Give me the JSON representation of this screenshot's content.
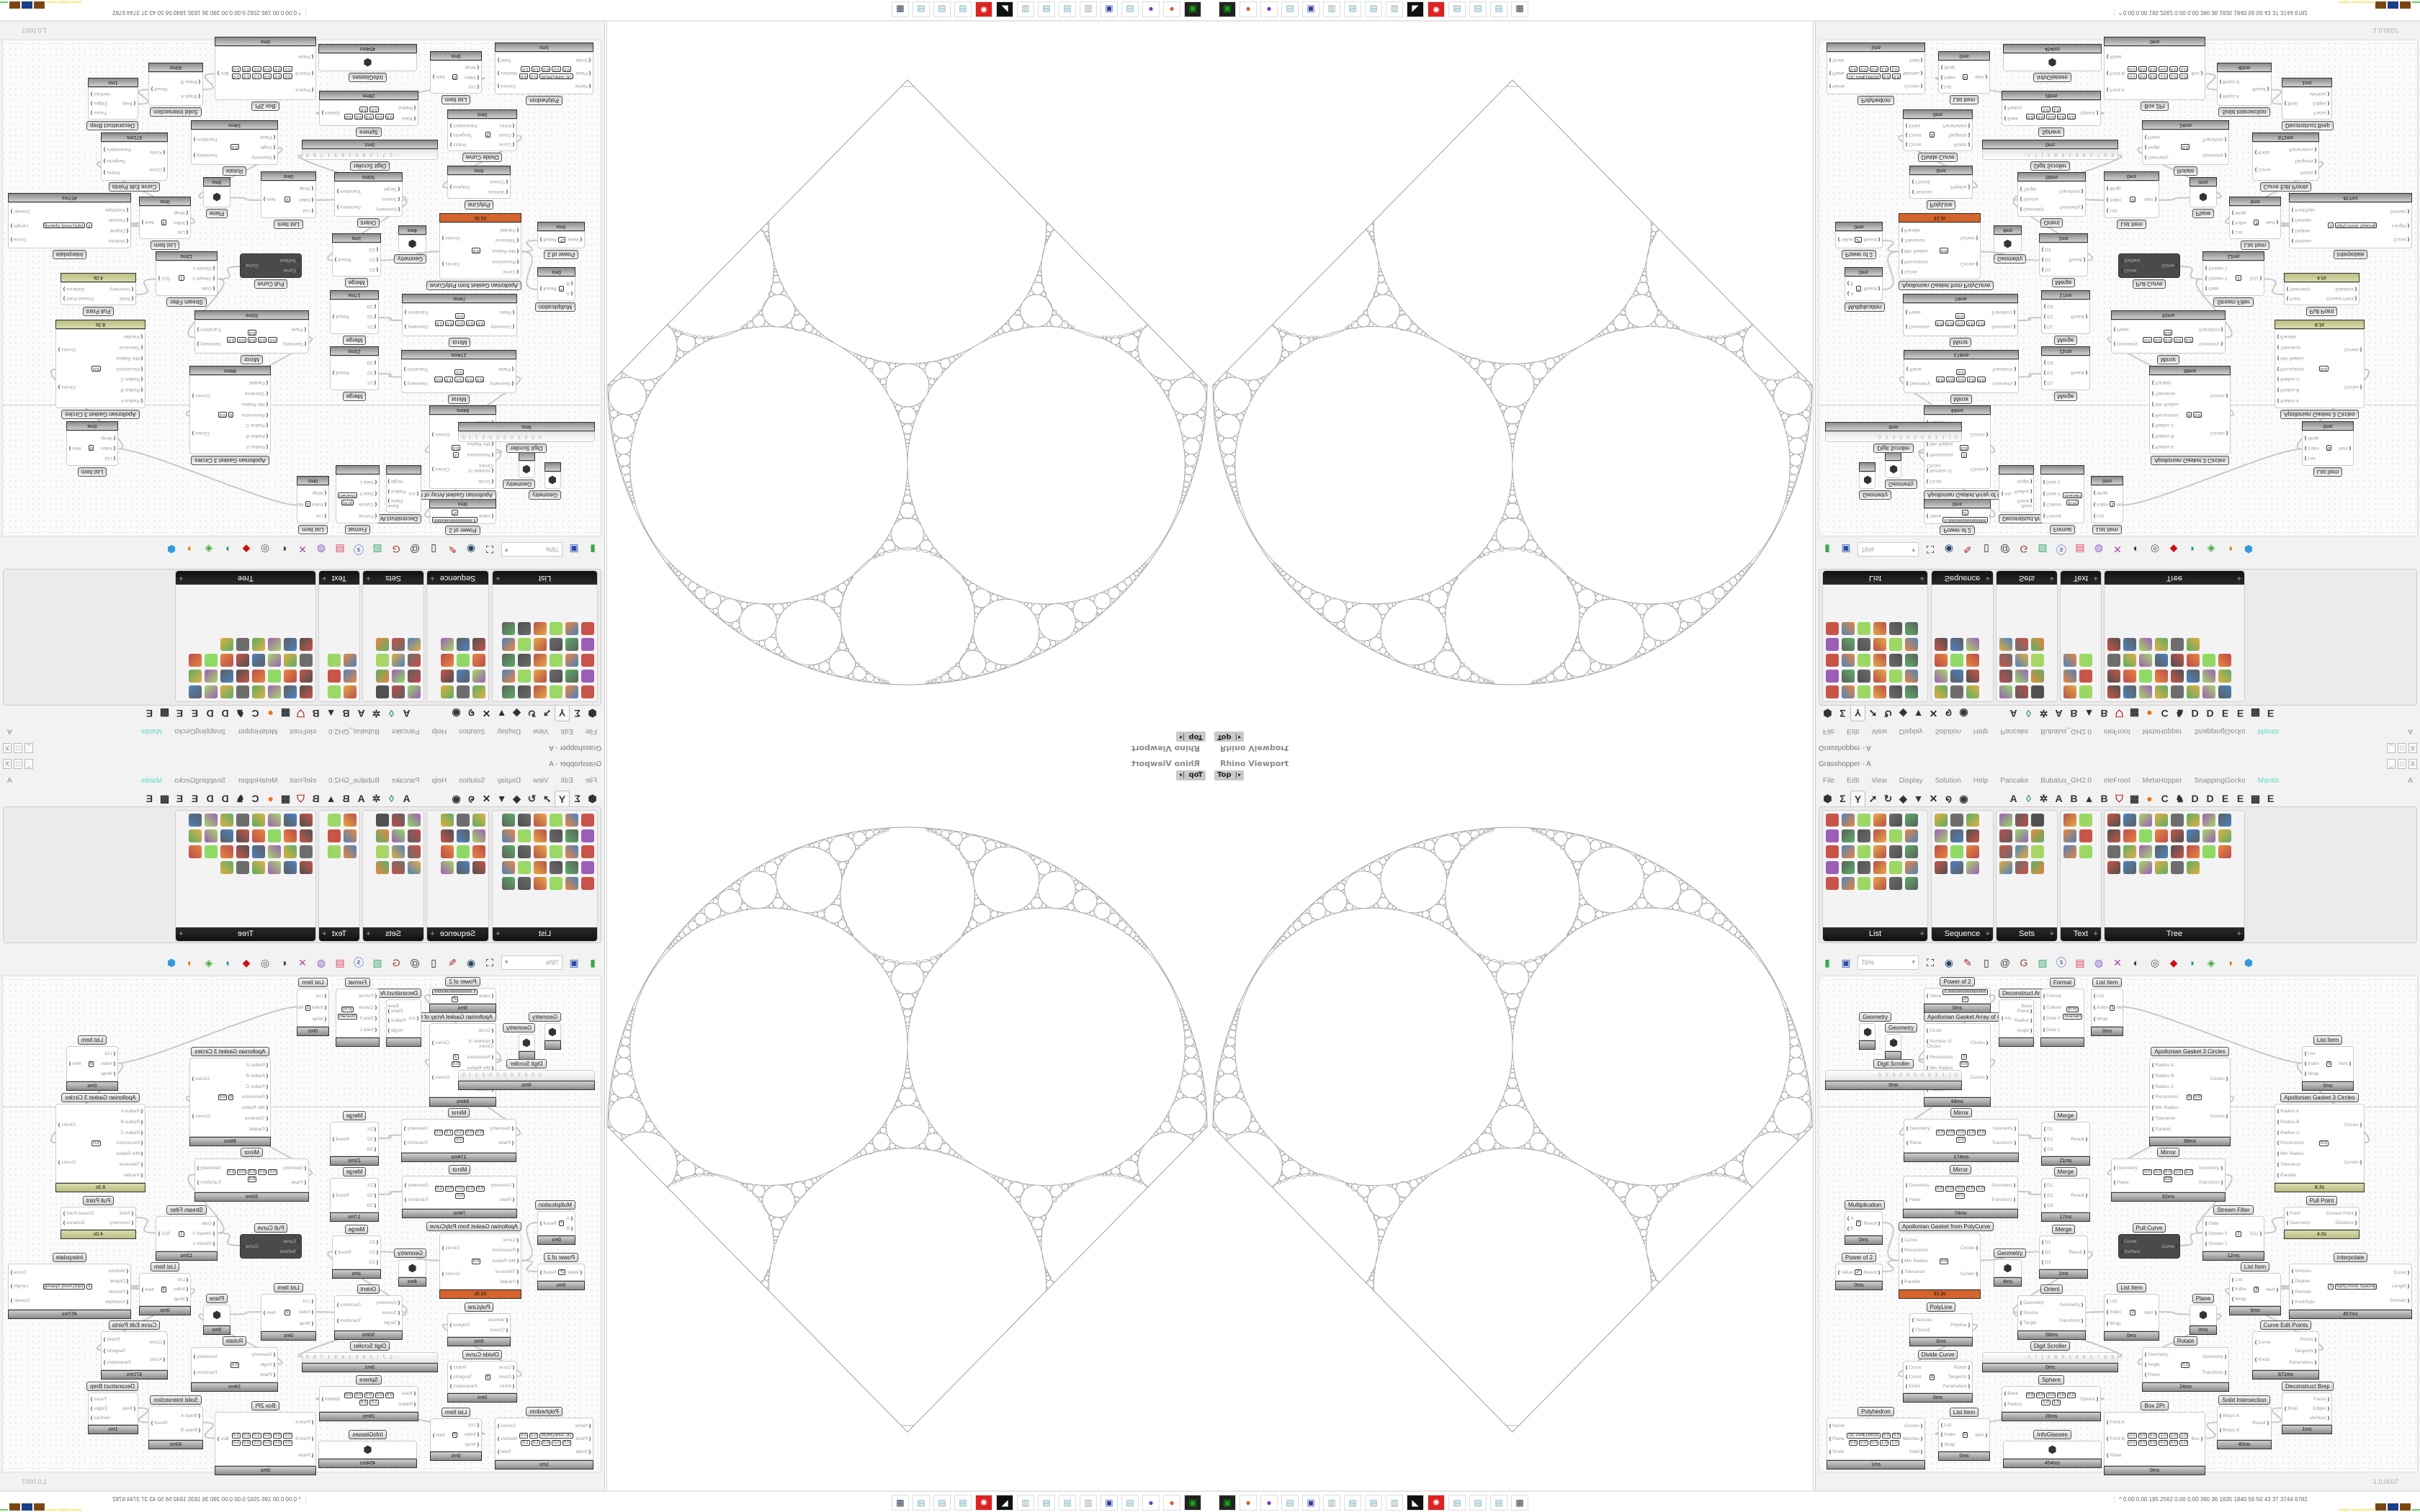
{
  "viewport": {
    "title": "Rhino Viewport",
    "view": "Top"
  },
  "grasshopper": {
    "title": "Grasshopper - A",
    "window_buttons": [
      "_",
      "□",
      "X"
    ],
    "menu": [
      "File",
      "Edit",
      "View",
      "Display",
      "Solution",
      "Help",
      "Pancake",
      "Bubalus_GH2.0",
      "eleFront",
      "MetaHopper",
      "SnappingGecko",
      "Mantis"
    ],
    "menu_right": "A",
    "tabs": [
      {
        "icon": "params-hex-icon",
        "glyph": "⬢"
      },
      {
        "icon": "maths-sigma-icon",
        "glyph": "Σ"
      },
      {
        "icon": "sets-tree-icon",
        "glyph": "Y"
      },
      {
        "icon": "vector-arrow-icon",
        "glyph": "➚"
      },
      {
        "icon": "curve-icon",
        "glyph": "↻"
      },
      {
        "icon": "surface-icon",
        "glyph": "◆"
      },
      {
        "icon": "mesh-icon",
        "glyph": "▼"
      },
      {
        "icon": "intersect-icon",
        "glyph": "✕"
      },
      {
        "icon": "transform-icon",
        "glyph": "໑"
      },
      {
        "icon": "display-eye-icon",
        "glyph": "◉"
      },
      {
        "icon": "plugin-a-icon",
        "glyph": "A"
      },
      {
        "icon": "plugin-crystal-icon",
        "glyph": "◊"
      },
      {
        "icon": "plugin-gear-icon",
        "glyph": "✲"
      },
      {
        "icon": "plugin-a2-icon",
        "glyph": "A"
      },
      {
        "icon": "plugin-b-icon",
        "glyph": "B"
      },
      {
        "icon": "plugin-mountain-icon",
        "glyph": "▲"
      },
      {
        "icon": "plugin-b2-icon",
        "glyph": "B"
      },
      {
        "icon": "plugin-shield-icon",
        "glyph": "⛉"
      },
      {
        "icon": "plugin-grid-icon",
        "glyph": "▦"
      },
      {
        "icon": "plugin-orange-dot-icon",
        "glyph": "●"
      },
      {
        "icon": "plugin-c-icon",
        "glyph": "C"
      },
      {
        "icon": "plugin-bird-icon",
        "glyph": "♞"
      },
      {
        "icon": "plugin-d-icon",
        "glyph": "D"
      },
      {
        "icon": "plugin-d2-icon",
        "glyph": "D"
      },
      {
        "icon": "plugin-e-icon",
        "glyph": "E"
      },
      {
        "icon": "plugin-e2-icon",
        "glyph": "E"
      },
      {
        "icon": "plugin-pattern-icon",
        "glyph": "▩"
      },
      {
        "icon": "plugin-e3-icon",
        "glyph": "E"
      }
    ],
    "active_tab": 2,
    "ribbon_panels": [
      "List",
      "Sequence",
      "Sets",
      "Text",
      "Tree"
    ],
    "canvas_toolbar_icons": [
      "open-file-icon",
      "save-icon",
      "zoom-extents-icon",
      "preview-eye-icon",
      "sketch-icon",
      "cluster-icon",
      "at-icon",
      "gha-icon",
      "image-icon",
      "search-icon",
      "package-icon",
      "bulb-icon",
      "dna-icon",
      "preview-shaded-icon",
      "wireframe-icon",
      "red-shape-icon",
      "teal-shape-icon",
      "green-shape-icon",
      "sphere-icon",
      "blue-drop-icon"
    ],
    "zoom": "76%",
    "version": "1.0.0007"
  },
  "canvas": {
    "nodes": [
      {
        "title": "Power of 2",
        "inputs": [
          "Value"
        ],
        "outputs": [
          "Result"
        ],
        "params": [
          "8.6666666666666666",
          "2ⁿ"
        ],
        "time": "0ms",
        "status": "normal"
      },
      {
        "title": "Apollonian Gasket Array of Circles",
        "inputs": [
          "Circle",
          "Number of Circles",
          "Recursions",
          "Min Radius",
          "Tolerance",
          "Parallel"
        ],
        "outputs": [
          "Circles",
          "Curves"
        ],
        "params": [
          "3",
          "0.0"
        ],
        "time": "84ms",
        "status": "normal"
      },
      {
        "title": "Deconstruct Arc",
        "inputs": [
          "Arc"
        ],
        "outputs": [
          "Base Plane",
          "Radius",
          "Angle"
        ],
        "params": [],
        "time": "",
        "status": "normal"
      },
      {
        "title": "Format",
        "inputs": [
          "Format",
          "Culture",
          "Data 0",
          "Data 1"
        ],
        "outputs": [
          "Text"
        ],
        "params": [
          "{0:R}",
          "Invariant"
        ],
        "time": "",
        "status": "normal"
      },
      {
        "title": "List Item",
        "inputs": [
          "List",
          "Index",
          "Wrap"
        ],
        "outputs": [
          "Item"
        ],
        "params": [
          "1"
        ],
        "time": "0ms",
        "status": "normal"
      },
      {
        "title": "Geometry",
        "inputs": [],
        "outputs": [],
        "params": [],
        "time": "",
        "status": "normal"
      },
      {
        "title": "Geometry",
        "inputs": [],
        "outputs": [],
        "params": [],
        "time": "",
        "status": "normal"
      },
      {
        "title": "Digit Scroller",
        "inputs": [],
        "outputs": [],
        "params": [
          "0 0 0 0 0 0 0 0 2 1 | 0"
        ],
        "time": "0ms",
        "status": "slider"
      },
      {
        "title": "Mirror",
        "inputs": [
          "Geometry",
          "Plane"
        ],
        "outputs": [
          "Geometry",
          "Transform"
        ],
        "params": [
          "0.0",
          "0.0",
          "0.0",
          "1.0",
          "0.0",
          "0.0"
        ],
        "time": "174ms",
        "status": "normal"
      },
      {
        "title": "Merge",
        "inputs": [
          "D1",
          "D2",
          "D3"
        ],
        "outputs": [
          "Result"
        ],
        "params": [],
        "time": "21ms",
        "status": "normal"
      },
      {
        "title": "Mirror",
        "inputs": [
          "Geometry",
          "Plane"
        ],
        "outputs": [
          "Geometry",
          "Transform"
        ],
        "params": [
          "0.0",
          "0.0",
          "0.0",
          "0.0",
          "1.0",
          "0.0"
        ],
        "time": "74ms",
        "status": "normal"
      },
      {
        "title": "Merge",
        "inputs": [
          "D1",
          "D2",
          "D3"
        ],
        "outputs": [
          "Result"
        ],
        "params": [],
        "time": "17ms",
        "status": "normal"
      },
      {
        "title": "Multiplication",
        "inputs": [
          "A",
          "B"
        ],
        "outputs": [
          "Result"
        ],
        "params": [
          "×"
        ],
        "time": "0ms",
        "status": "normal"
      },
      {
        "title": "Apollonian Gasket from PolyCurve",
        "inputs": [
          "Curve",
          "Recursions",
          "Min Radius",
          "Tolerance",
          "Parallel"
        ],
        "outputs": [
          "Circles",
          "Curves"
        ],
        "params": [
          "0.0"
        ],
        "time": "33.3s",
        "status": "orange"
      },
      {
        "title": "Merge",
        "inputs": [
          "D1",
          "D2",
          "D3"
        ],
        "outputs": [
          "Result"
        ],
        "params": [],
        "time": "1ms",
        "status": "normal"
      },
      {
        "title": "Geometry",
        "inputs": [],
        "outputs": [],
        "params": [],
        "time": "4ms",
        "status": "normal"
      },
      {
        "title": "Power of 2",
        "inputs": [
          "Value"
        ],
        "outputs": [
          "Result"
        ],
        "params": [
          "2ⁿ"
        ],
        "time": "0ms",
        "status": "normal"
      },
      {
        "title": "Apollonian Gasket 3 Circles",
        "inputs": [
          "Radius A",
          "Radius B",
          "Radius C",
          "Recursions",
          "Min Radius",
          "Tolerance",
          "Parallel"
        ],
        "outputs": [
          "Circles",
          "Curves"
        ],
        "params": [
          "0",
          "0.0"
        ],
        "time": "96ms",
        "status": "normal"
      },
      {
        "title": "List Item",
        "inputs": [
          "List",
          "Index",
          "Wrap"
        ],
        "outputs": [
          "Item"
        ],
        "params": [
          "0"
        ],
        "time": "0ms",
        "status": "normal"
      },
      {
        "title": "Apollonian Gasket 3 Circles",
        "inputs": [
          "Radius A",
          "Radius B",
          "Radius C",
          "Recursions",
          "Min Radius",
          "Tolerance",
          "Parallel"
        ],
        "outputs": [
          "Circles",
          "Curves"
        ],
        "params": [
          "0.0"
        ],
        "time": "8.3s",
        "status": "olive"
      },
      {
        "title": "Mirror",
        "inputs": [
          "Geometry",
          "Plane"
        ],
        "outputs": [
          "Geometry",
          "Transform"
        ],
        "params": [
          "0.0",
          "0.0",
          "0.0",
          "0.0",
          "1.0",
          "0.0"
        ],
        "time": "92ms",
        "status": "normal"
      },
      {
        "title": "Stream Filter",
        "inputs": [
          "Gate",
          "Stream 0",
          "Stream 1"
        ],
        "outputs": [
          "S(1)"
        ],
        "params": [
          "1"
        ],
        "time": "12ms",
        "status": "normal"
      },
      {
        "title": "Pull Point",
        "inputs": [
          "Point",
          "Geometry"
        ],
        "outputs": [
          "Closest Point",
          "Distance"
        ],
        "params": [],
        "time": "4.0s",
        "status": "olive"
      },
      {
        "title": "Pull Curve",
        "inputs": [
          "Curve",
          "Surface"
        ],
        "outputs": [
          "Curve"
        ],
        "params": [],
        "time": "",
        "status": "dark"
      },
      {
        "title": "Interpolate",
        "inputs": [
          "Vertices",
          "Degree",
          "Periodic",
          "KnotStyle"
        ],
        "outputs": [
          "Curve",
          "Length",
          "Domain"
        ],
        "params": [
          "3",
          "Sqrt(Chord) Spacing"
        ],
        "time": "457ms",
        "status": "normal"
      },
      {
        "title": "List Item",
        "inputs": [
          "List",
          "Index",
          "Wrap"
        ],
        "outputs": [
          "Item"
        ],
        "params": [
          "3"
        ],
        "time": "0ms",
        "status": "normal"
      },
      {
        "title": "List Item",
        "inputs": [
          "List",
          "Index",
          "Wrap"
        ],
        "outputs": [
          "Item"
        ],
        "params": [
          "0"
        ],
        "time": "0ms",
        "status": "normal"
      },
      {
        "title": "Plane",
        "inputs": [],
        "outputs": [],
        "params": [],
        "time": "0ms",
        "status": "normal"
      },
      {
        "title": "Curve Edit Points",
        "inputs": [
          "Curve",
          "Knots"
        ],
        "outputs": [
          "Points",
          "Tangents",
          "Parameters"
        ],
        "params": [],
        "time": "671ms",
        "status": "normal"
      },
      {
        "title": "Rotate",
        "inputs": [
          "Geometry",
          "Angle",
          "Plane"
        ],
        "outputs": [
          "Geometry",
          "Transform"
        ],
        "params": [
          "0.0"
        ],
        "time": "24ms",
        "status": "normal"
      },
      {
        "title": "Deconstruct Brep",
        "inputs": [
          "Brep"
        ],
        "outputs": [
          "Faces",
          "Edges",
          "Vertices"
        ],
        "params": [],
        "time": "1ms",
        "status": "normal"
      },
      {
        "title": "Solid Intersection",
        "inputs": [
          "Breps A",
          "Breps B"
        ],
        "outputs": [
          "Result"
        ],
        "params": [],
        "time": "40ms",
        "status": "normal"
      },
      {
        "title": "Box 2Pt",
        "inputs": [
          "Point A",
          "Point B",
          "Plane"
        ],
        "outputs": [
          "Box"
        ],
        "params": [
          "0.0",
          "0.0",
          "0.0",
          "1.0",
          "1.0",
          "1.0",
          "0.0",
          "0.0",
          "0.0",
          "0.0",
          "0.0",
          "1.0"
        ],
        "time": "0ms",
        "status": "normal"
      },
      {
        "title": "Orient",
        "inputs": [
          "Geometry",
          "Source",
          "Target"
        ],
        "outputs": [
          "Geometry",
          "Transform"
        ],
        "params": [],
        "time": "50ms",
        "status": "normal"
      },
      {
        "title": "PolyLine",
        "inputs": [
          "Vertices",
          "Closed"
        ],
        "outputs": [
          "Polyline"
        ],
        "params": [],
        "time": "0ms",
        "status": "normal"
      },
      {
        "title": "Digit Scroller",
        "inputs": [],
        "outputs": [],
        "params": [
          "-1 7 | 2 8 9 1 8 9 1 7 6 9"
        ],
        "time": "0ms",
        "status": "slider"
      },
      {
        "title": "Divide Curve",
        "inputs": [
          "Curve",
          "Count",
          "Kinks"
        ],
        "outputs": [
          "Points",
          "Tangents",
          "Parameters"
        ],
        "params": [
          "3"
        ],
        "time": "0ms",
        "status": "normal"
      },
      {
        "title": "Sphere",
        "inputs": [
          "Base",
          "Radius"
        ],
        "outputs": [
          "Sphere"
        ],
        "params": [
          "0.0",
          "0.0",
          "0.0",
          "0.0",
          "0.0",
          "1.0",
          "1.0"
        ],
        "time": "28ms",
        "status": "normal"
      },
      {
        "title": "Polyhedron",
        "inputs": [
          "Name",
          "Plane",
          "Scale"
        ],
        "outputs": [
          "Curves",
          "Meshes",
          "Solid"
        ],
        "params": [
          "OCTAHEDRON",
          "0.0",
          "0.0",
          "0.0",
          "0.0",
          "0.0",
          "1.0",
          "1.0"
        ],
        "time": "1ms",
        "status": "normal"
      },
      {
        "title": "List Item",
        "inputs": [
          "List",
          "Index",
          "Wrap"
        ],
        "outputs": [
          "Item"
        ],
        "params": [
          "0"
        ],
        "time": "0ms",
        "status": "normal"
      },
      {
        "title": "InfoGlasses",
        "inputs": [],
        "outputs": [],
        "params": [],
        "time": "454ms",
        "status": "normal"
      }
    ]
  },
  "taskbar": {
    "apps": [
      "terminal-icon",
      "firefox-icon",
      "messenger-icon",
      "notepad-icon",
      "floppy-64-icon",
      "scroll-icon",
      "notepad-icon",
      "notepad-icon",
      "scroll-icon",
      "rhino-icon",
      "settings-icon",
      "notepad-icon",
      "notepad-icon",
      "notepad-icon",
      "remote-desktop-icon"
    ],
    "tray_arrow": "^",
    "tray_text": "0.00 0.00 195 2562 0.00 0.00 390 36 1835 1840 56 50 43 37 3744 6782",
    "meter_colors": [
      "#f2ef6a",
      "#f2ef6a",
      "#f2ef6a",
      "#7a4712",
      "#1b3f86",
      "#7a4712",
      "#5fd05f",
      "#7d0a0a"
    ]
  },
  "colors": {
    "accent_mantis": "#5fd8c0",
    "slow_orange": "#d3642b",
    "slow_olive": "#c8cc95",
    "gasket_stroke": "#a0a0a0"
  }
}
